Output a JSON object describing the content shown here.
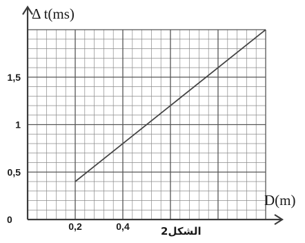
{
  "chart_data": {
    "type": "line",
    "xlabel": "D(m)",
    "ylabel": "Δ t(ms)",
    "caption": "الشكل2",
    "origin_label": "0",
    "xlim": [
      0,
      1.0
    ],
    "ylim": [
      0,
      2.0
    ],
    "grid": true,
    "x_ticks": [
      {
        "value": 0.2,
        "label": "0,2"
      },
      {
        "value": 0.4,
        "label": "0,4"
      }
    ],
    "y_ticks": [
      {
        "value": 0.5,
        "label": "0,5"
      },
      {
        "value": 1,
        "label": "1"
      },
      {
        "value": 1.5,
        "label": "1,5"
      }
    ],
    "series": [
      {
        "x": [
          0.2,
          1.0
        ],
        "y": [
          0.4,
          2.0
        ]
      }
    ]
  }
}
